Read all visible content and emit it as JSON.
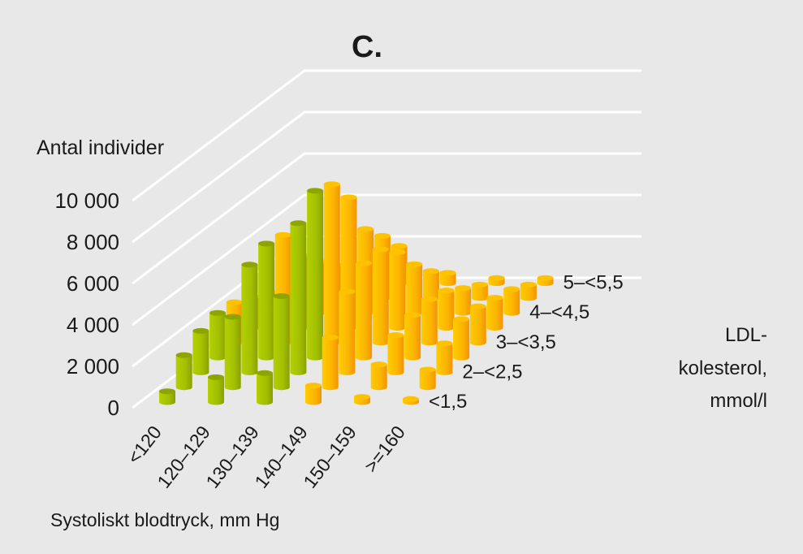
{
  "chart_data": {
    "type": "bar",
    "subtype": "3d-cylinder",
    "title": "C.",
    "ylabel": "Antal individer",
    "xlabel": "Systoliskt blodtryck, mm Hg",
    "zlabel": [
      "LDL-",
      "kolesterol,",
      "mmol/l"
    ],
    "ylim": [
      0,
      10000
    ],
    "yticks": [
      {
        "value": 0,
        "label": "0"
      },
      {
        "value": 2000,
        "label": "2 000"
      },
      {
        "value": 4000,
        "label": "4 000"
      },
      {
        "value": 6000,
        "label": "6 000"
      },
      {
        "value": 8000,
        "label": "8 000"
      },
      {
        "value": 10000,
        "label": "10 000"
      }
    ],
    "categories": [
      "<120",
      "120–129",
      "130–139",
      "140–149",
      "150–159",
      ">=160"
    ],
    "series": [
      {
        "label": "<1,5",
        "values": [
          520,
          1200,
          1400,
          800,
          250,
          150
        ],
        "colors": [
          "green",
          "green",
          "green",
          "orange",
          "orange",
          "orange"
        ]
      },
      {
        "label": null,
        "values": [
          1550,
          3400,
          4400,
          2400,
          1100,
          850
        ],
        "colors": [
          "green",
          "green",
          "green",
          "orange",
          "orange",
          "orange"
        ]
      },
      {
        "label": "2–<2,5",
        "values": [
          2000,
          5200,
          7200,
          3900,
          1800,
          1400
        ],
        "colors": [
          "green",
          "green",
          "green",
          "orange",
          "orange",
          "orange"
        ]
      },
      {
        "label": null,
        "values": [
          2150,
          5500,
          8050,
          4550,
          2050,
          1850
        ],
        "colors": [
          "green",
          "green",
          "green",
          "orange",
          "orange",
          "orange"
        ]
      },
      {
        "label": "3–<3,5",
        "values": [
          1950,
          5200,
          7650,
          4500,
          2100,
          1750
        ],
        "colors": [
          "orange",
          "orange",
          "orange",
          "orange",
          "orange",
          "orange"
        ]
      },
      {
        "label": null,
        "values": [
          1500,
          3500,
          6300,
          3650,
          1800,
          1450
        ],
        "colors": [
          "orange",
          "orange",
          "orange",
          "orange",
          "orange",
          "orange"
        ]
      },
      {
        "label": "4–<4,5",
        "values": [
          1000,
          2500,
          4050,
          2350,
          1200,
          1150
        ],
        "colors": [
          "orange",
          "orange",
          "orange",
          "orange",
          "orange",
          "orange"
        ]
      },
      {
        "label": null,
        "values": [
          600,
          1600,
          3000,
          1300,
          650,
          650
        ],
        "colors": [
          "orange",
          "orange",
          "orange",
          "orange",
          "orange",
          "orange"
        ]
      },
      {
        "label": "5–<5,5",
        "values": [
          300,
          800,
          1800,
          500,
          250,
          250
        ],
        "colors": [
          "orange",
          "orange",
          "orange",
          "orange",
          "orange",
          "orange"
        ]
      }
    ],
    "palette": {
      "green": "#a6c400",
      "green_dark": "#8ea400",
      "orange": "#ffc200",
      "orange_dark": "#f39a00",
      "grid": "#ffffff",
      "background": "#e8e8e8"
    }
  }
}
